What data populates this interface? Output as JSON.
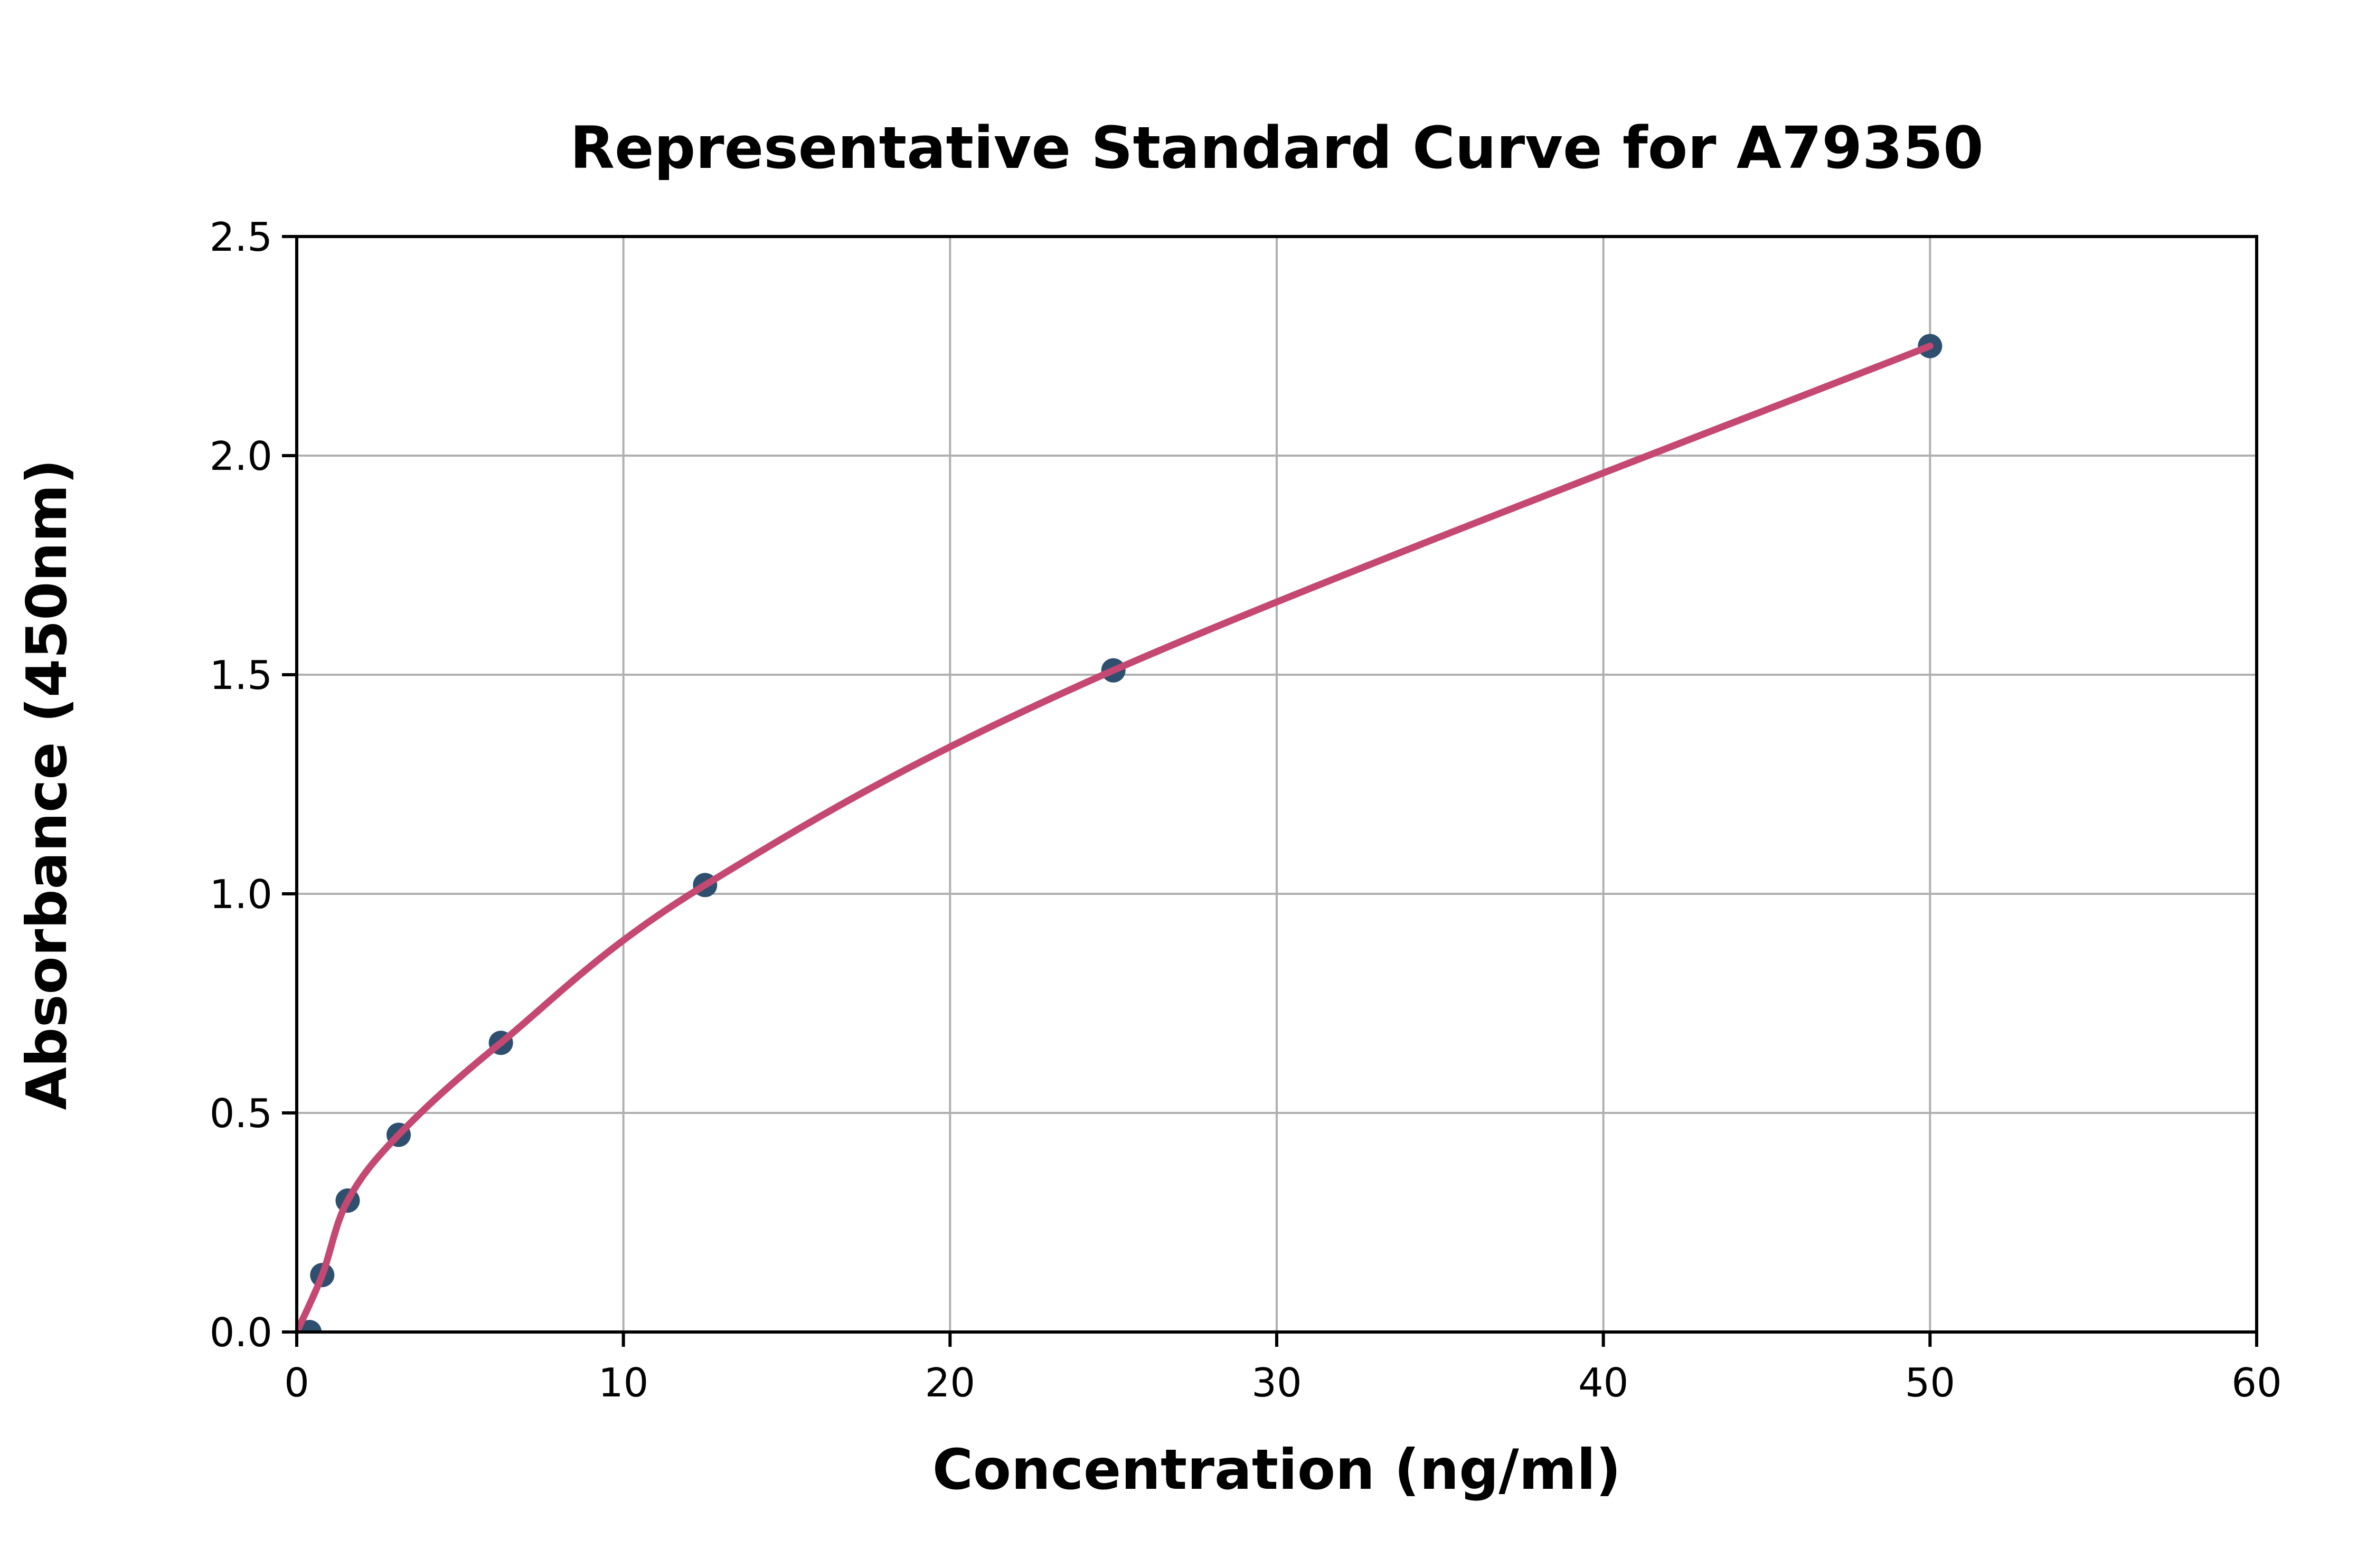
{
  "chart_data": {
    "type": "scatter",
    "title": "Representative Standard Curve for A79350",
    "xlabel": "Concentration (ng/ml)",
    "ylabel": "Absorbance (450nm)",
    "xlim": [
      0,
      60
    ],
    "ylim": [
      0,
      2.5
    ],
    "x_ticks": [
      0,
      10,
      20,
      30,
      40,
      50,
      60
    ],
    "y_ticks": [
      0.0,
      0.5,
      1.0,
      1.5,
      2.0,
      2.5
    ],
    "grid": true,
    "legend_position": "none",
    "points": {
      "x": [
        0.39,
        0.78,
        1.56,
        3.12,
        6.25,
        12.5,
        25,
        50
      ],
      "y": [
        0.0,
        0.13,
        0.3,
        0.45,
        0.66,
        1.02,
        1.51,
        2.25
      ]
    },
    "fit_curve_anchors": {
      "x": [
        0,
        0.78,
        1.56,
        3.12,
        6.25,
        12.5,
        25,
        50
      ],
      "y": [
        0.0,
        0.13,
        0.3,
        0.45,
        0.66,
        1.02,
        1.51,
        2.25
      ]
    },
    "colors": {
      "marker": "#2e4f6e",
      "curve": "#c44871",
      "grid": "#b0b0b0",
      "axes": "#000000",
      "text": "#000000",
      "background": "#ffffff"
    }
  }
}
